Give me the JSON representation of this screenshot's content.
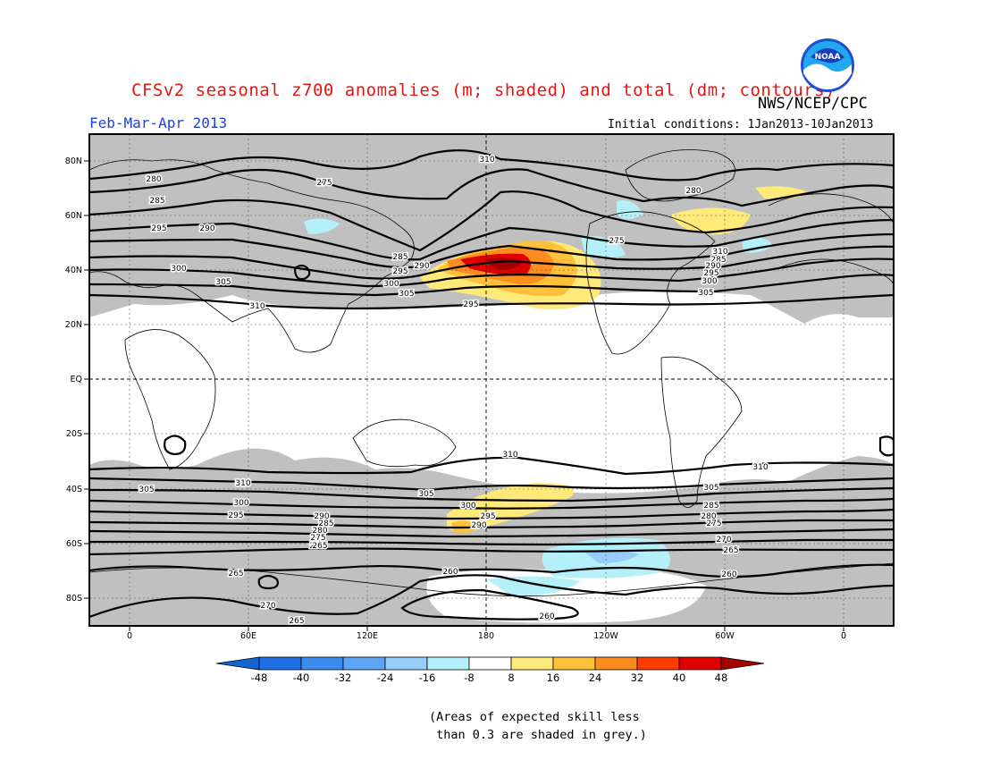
{
  "title": "CFSv2 seasonal z700 anomalies (m; shaded) and total (dm; contours)",
  "agency": "NWS/NCEP/CPC",
  "logo_text": "NOAA",
  "season": "Feb-Mar-Apr 2013",
  "initial_conditions": "Initial conditions: 1Jan2013-10Jan2013",
  "note_line1": "(Areas of expected skill less",
  "note_line2": " than 0.3 are shaded in grey.)",
  "lat_labels": [
    "80N",
    "60N",
    "40N",
    "20N",
    "EQ",
    "20S",
    "40S",
    "60S",
    "80S"
  ],
  "lon_labels": [
    "0",
    "60E",
    "120E",
    "180",
    "120W",
    "60W",
    "0"
  ],
  "colorbar": {
    "labels": [
      "-48",
      "-40",
      "-32",
      "-24",
      "-16",
      "-8",
      "8",
      "16",
      "24",
      "32",
      "40",
      "48"
    ],
    "colors": [
      "#1464d2",
      "#1e6ee6",
      "#3c8cf0",
      "#5fa5f5",
      "#96cdfa",
      "#b4f0fa",
      "#ffffff",
      "#ffe978",
      "#ffc03c",
      "#ff8c1e",
      "#ff3c00",
      "#e10000",
      "#a50000"
    ]
  },
  "contour_labels": {
    "nh": [
      "280",
      "275",
      "285",
      "290",
      "295",
      "300",
      "305",
      "310",
      "285",
      "290",
      "295",
      "300",
      "305",
      "310",
      "285",
      "290",
      "295",
      "300",
      "305",
      "310",
      "280",
      "275",
      "295"
    ],
    "sh": [
      "310",
      "310",
      "310",
      "305",
      "305",
      "300",
      "295",
      "290",
      "285",
      "280",
      "275",
      "270",
      "265",
      "260",
      "265",
      "270",
      "265",
      "260",
      "300",
      "295",
      "290",
      "285",
      "280",
      "275",
      "270",
      "265",
      "260",
      "305"
    ]
  }
}
